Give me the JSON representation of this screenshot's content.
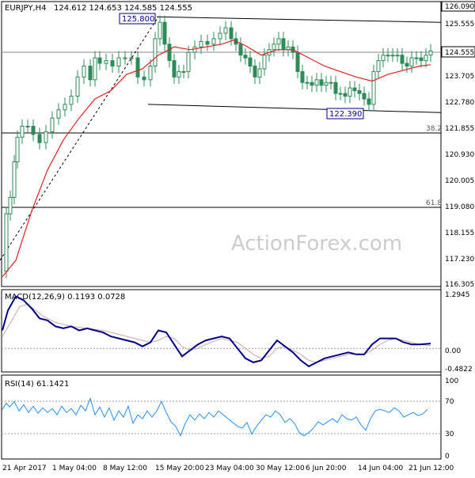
{
  "header": {
    "symbol_tf": "EURJPY,H4",
    "ohlc": "124.612 124.653 124.585 124.555"
  },
  "watermark": "ActionForex.com",
  "main_panel": {
    "price_axis_ticks": [
      "125.555",
      "124.555",
      "123.705",
      "122.780",
      "121.855",
      "120.930",
      "120.005",
      "119.080",
      "118.155",
      "117.230",
      "116.305"
    ],
    "current_price_label": "124.555",
    "top_label": "126.090",
    "annotations": {
      "high": "125.800",
      "low": "122.390",
      "fib_382": "38.2",
      "fib_618": "61.8"
    }
  },
  "macd_panel": {
    "title": "MACD(12,26,9) 0.1193 0.0728",
    "axis_ticks": [
      "1.2945",
      "0.00",
      "-0.4822"
    ]
  },
  "rsi_panel": {
    "title": "RSI(14) 61.1421",
    "axis_ticks": [
      "100",
      "70",
      "30",
      "0"
    ]
  },
  "time_axis": {
    "labels": [
      "21 Apr 2017",
      "1 May 04:00",
      "8 May 12:00",
      "15 May 20:00",
      "23 May 04:00",
      "30 May 12:00",
      "6 Jun 20:00",
      "14 Jun 04:00",
      "21 Jun 12:00"
    ]
  },
  "colors": {
    "candles": "#2e8b57",
    "ma": "#e02020",
    "macd": "#00008b",
    "signal": "#d2a5a5",
    "rsi": "#1e90ff",
    "grid": "#000000"
  },
  "chart_data": {
    "type": "candlestick",
    "title": "EURJPY,H4",
    "ylim": [
      116.0,
      126.3
    ],
    "high_label": 125.8,
    "low_label": 122.39,
    "fib_levels": [
      {
        "name": "38.2",
        "y": 121.7
      },
      {
        "name": "61.8",
        "y": 118.95
      }
    ],
    "trendlines": [
      {
        "from": [
          0,
          116.9
        ],
        "to": [
          200,
          125.8
        ],
        "style": "dotted"
      },
      {
        "from": [
          198,
          125.8
        ],
        "to": [
          557,
          125.6
        ],
        "style": "solid"
      },
      {
        "from": [
          187,
          122.6
        ],
        "to": [
          557,
          122.3
        ],
        "style": "solid"
      }
    ],
    "price_path": [
      [
        3,
        116.5
      ],
      [
        8,
        118.6
      ],
      [
        13,
        119.2
      ],
      [
        18,
        120.5
      ],
      [
        22,
        121.4
      ],
      [
        28,
        121.8
      ],
      [
        35,
        121.8
      ],
      [
        42,
        121.5
      ],
      [
        50,
        121.2
      ],
      [
        58,
        121.6
      ],
      [
        66,
        122.1
      ],
      [
        74,
        122.4
      ],
      [
        82,
        122.6
      ],
      [
        90,
        122.9
      ],
      [
        98,
        123.6
      ],
      [
        106,
        124.0
      ],
      [
        114,
        123.5
      ],
      [
        120,
        124.3
      ],
      [
        126,
        124.1
      ],
      [
        134,
        124.2
      ],
      [
        142,
        124.0
      ],
      [
        150,
        124.3
      ],
      [
        158,
        124.3
      ],
      [
        166,
        124.3
      ],
      [
        174,
        123.6
      ],
      [
        182,
        123.5
      ],
      [
        190,
        124.0
      ],
      [
        196,
        125.0
      ],
      [
        202,
        125.6
      ],
      [
        208,
        124.8
      ],
      [
        214,
        124.2
      ],
      [
        220,
        123.6
      ],
      [
        226,
        123.8
      ],
      [
        232,
        123.8
      ],
      [
        238,
        124.5
      ],
      [
        246,
        124.7
      ],
      [
        254,
        124.9
      ],
      [
        262,
        124.8
      ],
      [
        270,
        125.0
      ],
      [
        278,
        125.2
      ],
      [
        285,
        125.4
      ],
      [
        292,
        125.0
      ],
      [
        298,
        124.8
      ],
      [
        304,
        124.4
      ],
      [
        310,
        124.3
      ],
      [
        316,
        124.0
      ],
      [
        322,
        123.6
      ],
      [
        328,
        123.9
      ],
      [
        334,
        124.4
      ],
      [
        340,
        124.6
      ],
      [
        346,
        124.8
      ],
      [
        352,
        125.0
      ],
      [
        358,
        124.6
      ],
      [
        364,
        124.7
      ],
      [
        370,
        124.5
      ],
      [
        376,
        123.8
      ],
      [
        382,
        123.4
      ],
      [
        388,
        123.4
      ],
      [
        394,
        123.3
      ],
      [
        400,
        123.5
      ],
      [
        406,
        123.3
      ],
      [
        412,
        123.4
      ],
      [
        418,
        123.4
      ],
      [
        424,
        123.0
      ],
      [
        430,
        123.0
      ],
      [
        436,
        122.9
      ],
      [
        442,
        123.2
      ],
      [
        448,
        123.1
      ],
      [
        454,
        123.0
      ],
      [
        460,
        122.8
      ],
      [
        466,
        122.6
      ],
      [
        472,
        123.8
      ],
      [
        478,
        124.2
      ],
      [
        484,
        124.4
      ],
      [
        490,
        124.4
      ],
      [
        496,
        124.4
      ],
      [
        502,
        124.4
      ],
      [
        508,
        124.1
      ],
      [
        514,
        124.0
      ],
      [
        520,
        124.3
      ],
      [
        526,
        124.3
      ],
      [
        532,
        124.2
      ],
      [
        538,
        124.4
      ],
      [
        544,
        124.55
      ]
    ],
    "ma_path": [
      [
        3,
        116.3
      ],
      [
        20,
        116.9
      ],
      [
        40,
        118.7
      ],
      [
        60,
        120.2
      ],
      [
        80,
        121.3
      ],
      [
        100,
        122.1
      ],
      [
        120,
        122.8
      ],
      [
        140,
        123.1
      ],
      [
        160,
        123.7
      ],
      [
        180,
        123.9
      ],
      [
        200,
        124.4
      ],
      [
        220,
        124.7
      ],
      [
        240,
        124.6
      ],
      [
        260,
        124.7
      ],
      [
        280,
        124.8
      ],
      [
        295,
        124.95
      ],
      [
        310,
        124.75
      ],
      [
        330,
        124.4
      ],
      [
        350,
        124.6
      ],
      [
        370,
        124.6
      ],
      [
        390,
        124.3
      ],
      [
        410,
        124.0
      ],
      [
        430,
        123.8
      ],
      [
        450,
        123.6
      ],
      [
        470,
        123.45
      ],
      [
        490,
        123.7
      ],
      [
        510,
        123.85
      ],
      [
        530,
        124.0
      ],
      [
        544,
        124.05
      ]
    ],
    "macd": {
      "ylim": [
        -0.55,
        1.35
      ],
      "line": [
        [
          3,
          0.45
        ],
        [
          10,
          0.95
        ],
        [
          20,
          1.3
        ],
        [
          30,
          1.2
        ],
        [
          40,
          1.0
        ],
        [
          50,
          0.75
        ],
        [
          60,
          0.7
        ],
        [
          70,
          0.55
        ],
        [
          80,
          0.5
        ],
        [
          90,
          0.55
        ],
        [
          100,
          0.45
        ],
        [
          110,
          0.5
        ],
        [
          120,
          0.45
        ],
        [
          130,
          0.4
        ],
        [
          140,
          0.3
        ],
        [
          150,
          0.25
        ],
        [
          160,
          0.2
        ],
        [
          170,
          0.15
        ],
        [
          180,
          0.05
        ],
        [
          190,
          0.15
        ],
        [
          200,
          0.45
        ],
        [
          210,
          0.4
        ],
        [
          220,
          0.1
        ],
        [
          230,
          -0.2
        ],
        [
          240,
          -0.05
        ],
        [
          250,
          0.1
        ],
        [
          260,
          0.2
        ],
        [
          270,
          0.25
        ],
        [
          280,
          0.3
        ],
        [
          290,
          0.25
        ],
        [
          300,
          0.0
        ],
        [
          310,
          -0.25
        ],
        [
          320,
          -0.35
        ],
        [
          330,
          -0.3
        ],
        [
          340,
          -0.05
        ],
        [
          350,
          0.2
        ],
        [
          360,
          0.05
        ],
        [
          370,
          -0.1
        ],
        [
          380,
          -0.3
        ],
        [
          390,
          -0.45
        ],
        [
          400,
          -0.35
        ],
        [
          410,
          -0.25
        ],
        [
          420,
          -0.2
        ],
        [
          430,
          -0.15
        ],
        [
          440,
          -0.1
        ],
        [
          450,
          -0.15
        ],
        [
          460,
          -0.15
        ],
        [
          470,
          0.1
        ],
        [
          480,
          0.25
        ],
        [
          490,
          0.25
        ],
        [
          500,
          0.25
        ],
        [
          510,
          0.15
        ],
        [
          520,
          0.1
        ],
        [
          530,
          0.1
        ],
        [
          544,
          0.12
        ]
      ],
      "signal": [
        [
          3,
          0.3
        ],
        [
          15,
          0.7
        ],
        [
          25,
          1.05
        ],
        [
          35,
          1.1
        ],
        [
          45,
          0.95
        ],
        [
          55,
          0.8
        ],
        [
          70,
          0.65
        ],
        [
          90,
          0.55
        ],
        [
          110,
          0.5
        ],
        [
          130,
          0.45
        ],
        [
          150,
          0.35
        ],
        [
          170,
          0.25
        ],
        [
          190,
          0.15
        ],
        [
          200,
          0.2
        ],
        [
          210,
          0.3
        ],
        [
          220,
          0.25
        ],
        [
          230,
          0.05
        ],
        [
          240,
          -0.05
        ],
        [
          250,
          0.0
        ],
        [
          260,
          0.1
        ],
        [
          280,
          0.25
        ],
        [
          300,
          0.15
        ],
        [
          320,
          -0.15
        ],
        [
          330,
          -0.25
        ],
        [
          340,
          -0.2
        ],
        [
          350,
          0.0
        ],
        [
          360,
          0.05
        ],
        [
          380,
          -0.15
        ],
        [
          390,
          -0.3
        ],
        [
          400,
          -0.35
        ],
        [
          420,
          -0.25
        ],
        [
          440,
          -0.15
        ],
        [
          460,
          -0.15
        ],
        [
          470,
          -0.05
        ],
        [
          480,
          0.1
        ],
        [
          490,
          0.2
        ],
        [
          500,
          0.25
        ],
        [
          510,
          0.2
        ],
        [
          530,
          0.1
        ],
        [
          544,
          0.07
        ]
      ]
    },
    "rsi": {
      "ylim": [
        0,
        100
      ],
      "line": [
        [
          3,
          62
        ],
        [
          8,
          70
        ],
        [
          12,
          65
        ],
        [
          18,
          72
        ],
        [
          24,
          60
        ],
        [
          30,
          68
        ],
        [
          36,
          58
        ],
        [
          42,
          66
        ],
        [
          48,
          57
        ],
        [
          54,
          64
        ],
        [
          60,
          58
        ],
        [
          66,
          63
        ],
        [
          72,
          55
        ],
        [
          78,
          66
        ],
        [
          84,
          58
        ],
        [
          90,
          63
        ],
        [
          96,
          55
        ],
        [
          102,
          67
        ],
        [
          108,
          60
        ],
        [
          114,
          76
        ],
        [
          120,
          55
        ],
        [
          126,
          65
        ],
        [
          132,
          52
        ],
        [
          138,
          64
        ],
        [
          144,
          48
        ],
        [
          150,
          60
        ],
        [
          156,
          52
        ],
        [
          162,
          66
        ],
        [
          168,
          44
        ],
        [
          174,
          55
        ],
        [
          180,
          50
        ],
        [
          186,
          60
        ],
        [
          192,
          52
        ],
        [
          198,
          60
        ],
        [
          204,
          72
        ],
        [
          210,
          58
        ],
        [
          216,
          46
        ],
        [
          222,
          40
        ],
        [
          228,
          28
        ],
        [
          234,
          44
        ],
        [
          240,
          55
        ],
        [
          246,
          48
        ],
        [
          252,
          56
        ],
        [
          258,
          50
        ],
        [
          264,
          58
        ],
        [
          270,
          52
        ],
        [
          276,
          60
        ],
        [
          282,
          55
        ],
        [
          288,
          50
        ],
        [
          294,
          45
        ],
        [
          300,
          40
        ],
        [
          306,
          38
        ],
        [
          312,
          45
        ],
        [
          318,
          30
        ],
        [
          324,
          40
        ],
        [
          330,
          48
        ],
        [
          336,
          55
        ],
        [
          342,
          52
        ],
        [
          348,
          60
        ],
        [
          354,
          55
        ],
        [
          360,
          45
        ],
        [
          366,
          50
        ],
        [
          372,
          44
        ],
        [
          378,
          32
        ],
        [
          384,
          28
        ],
        [
          390,
          32
        ],
        [
          396,
          38
        ],
        [
          402,
          46
        ],
        [
          408,
          42
        ],
        [
          414,
          46
        ],
        [
          420,
          50
        ],
        [
          426,
          45
        ],
        [
          432,
          55
        ],
        [
          438,
          50
        ],
        [
          444,
          48
        ],
        [
          450,
          52
        ],
        [
          456,
          42
        ],
        [
          462,
          35
        ],
        [
          468,
          50
        ],
        [
          474,
          60
        ],
        [
          480,
          62
        ],
        [
          486,
          60
        ],
        [
          492,
          58
        ],
        [
          498,
          64
        ],
        [
          504,
          60
        ],
        [
          510,
          52
        ],
        [
          516,
          55
        ],
        [
          522,
          58
        ],
        [
          528,
          54
        ],
        [
          534,
          56
        ],
        [
          540,
          62
        ]
      ]
    },
    "time_labels": [
      "21 Apr 2017",
      "1 May 04:00",
      "8 May 12:00",
      "15 May 20:00",
      "23 May 04:00",
      "30 May 12:00",
      "6 Jun 20:00",
      "14 Jun 04:00",
      "21 Jun 12:00"
    ]
  }
}
